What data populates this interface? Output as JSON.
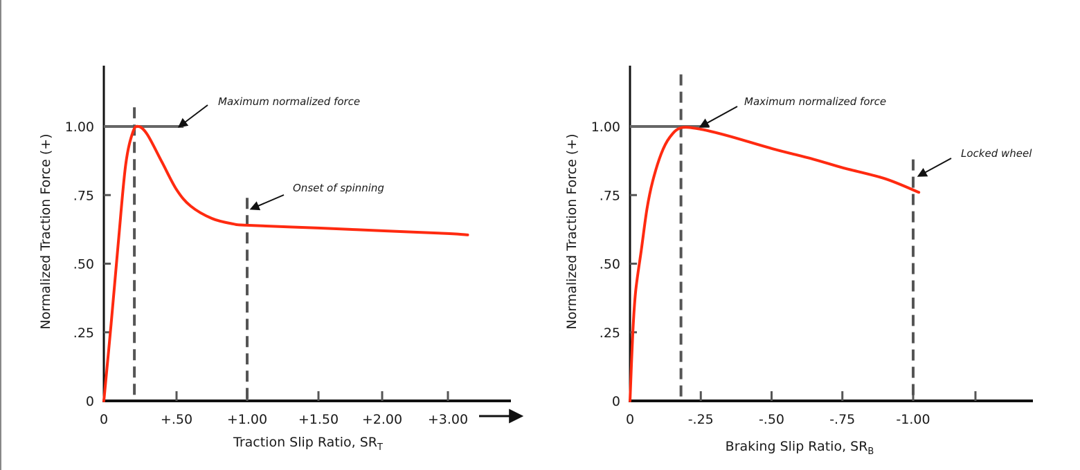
{
  "chart_data": [
    {
      "type": "line",
      "xlabel": "Traction Slip Ratio, SR",
      "xlabel_subscript": "T",
      "ylabel": "Normalized Traction Force (+)",
      "x_ticks": [
        "0",
        "+.50",
        "+1.00",
        "+1.50",
        "+2.00",
        "+3.00"
      ],
      "x_tick_values": [
        0,
        0.5,
        1.0,
        1.5,
        2.0,
        3.0
      ],
      "y_ticks": [
        "0",
        ".25",
        ".50",
        ".75",
        "1.00"
      ],
      "y_tick_values": [
        0,
        0.25,
        0.5,
        0.75,
        1.0
      ],
      "ylim": [
        0,
        1.2
      ],
      "x_axis_arrow": true,
      "grid": false,
      "line_color": "#ff2a10",
      "series": [
        {
          "x": [
            0,
            0.05,
            0.1,
            0.15,
            0.2,
            0.24,
            0.3,
            0.4,
            0.5,
            0.6,
            0.75,
            0.9,
            1.0,
            1.5,
            2.0,
            3.0,
            3.3
          ],
          "y": [
            0,
            0.28,
            0.58,
            0.86,
            0.98,
            1.0,
            0.97,
            0.87,
            0.77,
            0.71,
            0.665,
            0.645,
            0.64,
            0.63,
            0.62,
            0.61,
            0.605
          ]
        }
      ],
      "reference_lines": [
        {
          "type": "horizontal",
          "y": 1.0,
          "x_end": 0.55
        },
        {
          "type": "vertical-dashed",
          "x": 0.21,
          "y_top": 1.07
        },
        {
          "type": "vertical-dashed",
          "x": 1.0,
          "y_top": 0.74
        }
      ],
      "annotations": [
        {
          "text": "Maximum normalized force",
          "points_to": [
            0.52,
            1.0
          ]
        },
        {
          "text": "Onset of spinning",
          "points_to": [
            1.03,
            0.7
          ]
        }
      ]
    },
    {
      "type": "line",
      "xlabel": "Braking Slip Ratio, SR",
      "xlabel_subscript": "B",
      "ylabel": "Normalized Traction Force (+)",
      "x_ticks": [
        "0",
        "-.25",
        "-.50",
        "-.75",
        "-1.00"
      ],
      "x_tick_values": [
        0,
        -0.25,
        -0.5,
        -0.75,
        -1.0
      ],
      "x_unlabeled_ticks": [
        -1.22
      ],
      "y_ticks": [
        "0",
        ".25",
        ".50",
        ".75",
        "1.00"
      ],
      "y_tick_values": [
        0,
        0.25,
        0.5,
        0.75,
        1.0
      ],
      "xlim": [
        0,
        -1.42
      ],
      "ylim": [
        0,
        1.2
      ],
      "grid": false,
      "line_color": "#ff2a10",
      "series": [
        {
          "x": [
            0,
            -0.01,
            -0.02,
            -0.04,
            -0.06,
            -0.08,
            -0.11,
            -0.14,
            -0.18,
            -0.25,
            -0.35,
            -0.5,
            -0.65,
            -0.75,
            -0.9,
            -1.02
          ],
          "y": [
            0,
            0.25,
            0.4,
            0.55,
            0.7,
            0.8,
            0.9,
            0.96,
            0.995,
            0.99,
            0.965,
            0.92,
            0.88,
            0.85,
            0.81,
            0.76
          ]
        }
      ],
      "reference_lines": [
        {
          "type": "horizontal",
          "y": 1.0,
          "x_end": -0.28
        },
        {
          "type": "vertical-dashed",
          "x": -0.18,
          "y_top": 1.19
        },
        {
          "type": "vertical-dashed",
          "x": -1.0,
          "y_top": 0.88
        }
      ],
      "annotations": [
        {
          "text": "Maximum normalized force",
          "points_to": [
            -0.25,
            1.0
          ]
        },
        {
          "text": "Locked wheel",
          "points_to": [
            -1.02,
            0.82
          ]
        }
      ]
    }
  ]
}
